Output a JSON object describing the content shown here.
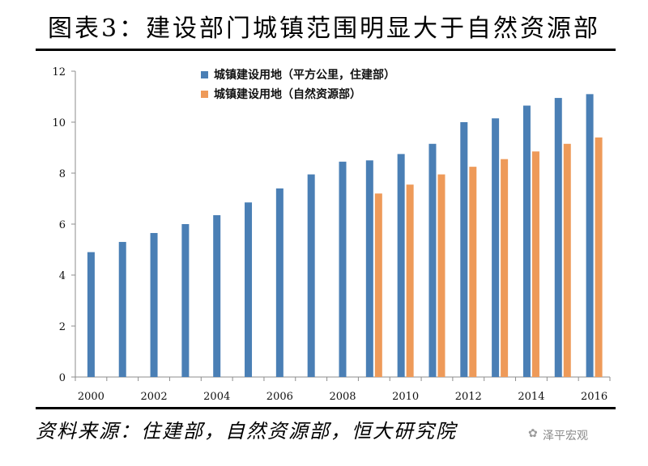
{
  "title": "图表3：建设部门城镇范围明显大于自然资源部",
  "source": "资料来源：住建部，自然资源部，恒大研究院",
  "watermark": "泽平宏观",
  "colors": {
    "blue": "#4a7fb5",
    "orange": "#ee9a59",
    "axis": "#8c8c8c"
  },
  "chart_data": {
    "type": "bar",
    "categories": [
      "2000",
      "2001",
      "2002",
      "2003",
      "2004",
      "2005",
      "2006",
      "2007",
      "2008",
      "2009",
      "2010",
      "2011",
      "2012",
      "2013",
      "2014",
      "2015",
      "2016"
    ],
    "x_tick_labels": [
      "2000",
      "2002",
      "2004",
      "2006",
      "2008",
      "2010",
      "2012",
      "2014",
      "2016"
    ],
    "series": [
      {
        "name": "城镇建设用地（平方公里，住建部）",
        "color": "#4a7fb5",
        "values": [
          4.9,
          5.3,
          5.65,
          6.0,
          6.35,
          6.85,
          7.4,
          7.95,
          8.45,
          8.5,
          8.75,
          9.15,
          10.0,
          10.15,
          10.65,
          10.95,
          11.1
        ]
      },
      {
        "name": "城镇建设用地（自然资源部）",
        "color": "#ee9a59",
        "values": [
          null,
          null,
          null,
          null,
          null,
          null,
          null,
          null,
          null,
          7.2,
          7.55,
          7.95,
          8.25,
          8.55,
          8.85,
          9.15,
          9.4
        ]
      }
    ],
    "ylim": [
      0,
      12
    ],
    "yticks": [
      0,
      2,
      4,
      6,
      8,
      10,
      12
    ],
    "grid": false,
    "legend": "top-left"
  }
}
